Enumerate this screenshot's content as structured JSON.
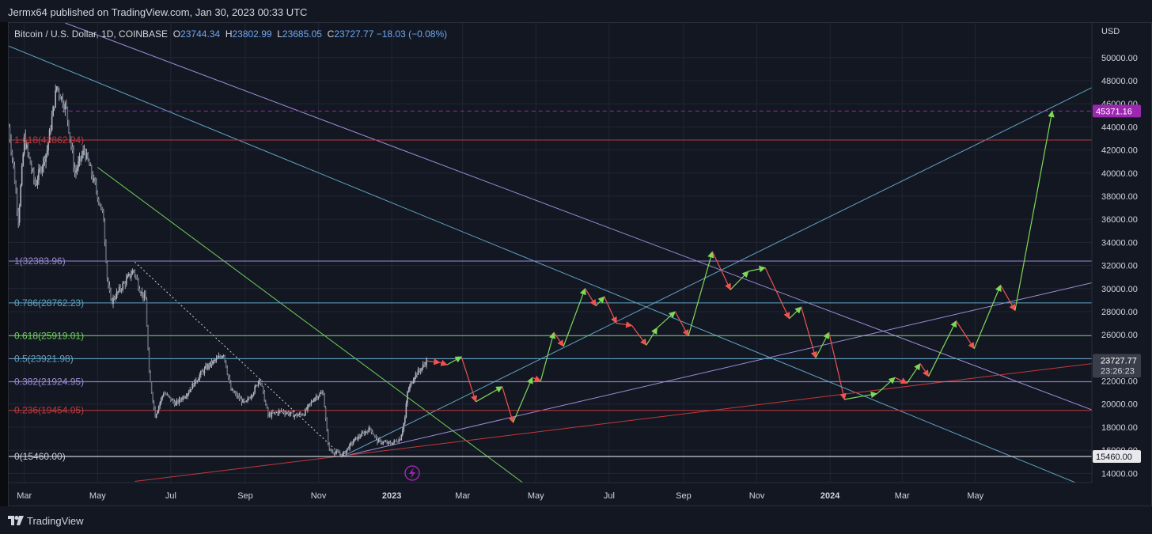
{
  "header": {
    "published_by": "Jermx64 published on TradingView.com, Jan 30, 2023 00:33 UTC"
  },
  "footer": {
    "brand": "TradingView"
  },
  "legend": {
    "symbol": "Bitcoin / U.S. Dollar, 1D, COINBASE",
    "open_key": "O",
    "open": "23744.34",
    "high_key": "H",
    "high": "23802.99",
    "low_key": "L",
    "low": "23685.05",
    "close_key": "C",
    "close": "23727.77",
    "change": "−18.03 (−0.08%)"
  },
  "currency": "USD",
  "colors": {
    "background": "#131722",
    "grid": "#222633",
    "candle": "#c7cbd4",
    "projection_up": "#7ed957",
    "projection_down": "#ef5350",
    "fib_red": "#c0393b",
    "fib_purple": "#9c8bd6",
    "fib_blue": "#5fa3c4",
    "fib_green": "#6ed05a",
    "target_badge": "#9c27b0",
    "last_badge": "#3a3e4a"
  },
  "chart_data": {
    "type": "candlestick",
    "title": "Bitcoin / U.S. Dollar, 1D, COINBASE",
    "ylabel": "USD",
    "ylim": [
      13200,
      53000
    ],
    "y_ticks": [
      14000,
      16000,
      18000,
      20000,
      22000,
      24000,
      26000,
      28000,
      30000,
      32000,
      34000,
      36000,
      38000,
      40000,
      42000,
      44000,
      46000,
      48000,
      50000
    ],
    "x_ticks": [
      "Mar",
      "May",
      "Jul",
      "Sep",
      "Nov",
      "2023",
      "Mar",
      "May",
      "Jul",
      "Sep",
      "Nov",
      "2024",
      "Mar",
      "May"
    ],
    "x_tick_dates": [
      "2022-03-01",
      "2022-05-01",
      "2022-07-01",
      "2022-09-01",
      "2022-11-01",
      "2023-01-01",
      "2023-03-01",
      "2023-05-01",
      "2023-07-01",
      "2023-09-01",
      "2023-11-01",
      "2024-01-01",
      "2024-03-01",
      "2024-05-01"
    ],
    "x_range": [
      "2022-02-16",
      "2024-08-06"
    ],
    "price_path": [
      [
        "2022-02-16",
        44000
      ],
      [
        "2022-02-20",
        40500
      ],
      [
        "2022-02-24",
        36000
      ],
      [
        "2022-03-01",
        43000
      ],
      [
        "2022-03-10",
        39000
      ],
      [
        "2022-03-20",
        42000
      ],
      [
        "2022-03-28",
        47500
      ],
      [
        "2022-04-05",
        45500
      ],
      [
        "2022-04-12",
        40000
      ],
      [
        "2022-04-20",
        42000
      ],
      [
        "2022-04-30",
        38500
      ],
      [
        "2022-05-06",
        36000
      ],
      [
        "2022-05-09",
        31000
      ],
      [
        "2022-05-12",
        28800
      ],
      [
        "2022-05-20",
        30000
      ],
      [
        "2022-05-31",
        31600
      ],
      [
        "2022-06-05",
        30000
      ],
      [
        "2022-06-10",
        29000
      ],
      [
        "2022-06-13",
        22500
      ],
      [
        "2022-06-18",
        19000
      ],
      [
        "2022-06-25",
        21000
      ],
      [
        "2022-07-05",
        20000
      ],
      [
        "2022-07-15",
        21000
      ],
      [
        "2022-07-25",
        22500
      ],
      [
        "2022-08-01",
        23300
      ],
      [
        "2022-08-10",
        24000
      ],
      [
        "2022-08-14",
        24400
      ],
      [
        "2022-08-20",
        21200
      ],
      [
        "2022-09-01",
        20000
      ],
      [
        "2022-09-10",
        21500
      ],
      [
        "2022-09-13",
        22300
      ],
      [
        "2022-09-20",
        19000
      ],
      [
        "2022-10-01",
        19400
      ],
      [
        "2022-10-13",
        19000
      ],
      [
        "2022-10-20",
        19200
      ],
      [
        "2022-10-29",
        20600
      ],
      [
        "2022-11-05",
        21000
      ],
      [
        "2022-11-08",
        17500
      ],
      [
        "2022-11-10",
        16000
      ],
      [
        "2022-11-21",
        15600
      ],
      [
        "2022-12-01",
        16900
      ],
      [
        "2022-12-14",
        17900
      ],
      [
        "2022-12-20",
        16800
      ],
      [
        "2022-12-31",
        16550
      ],
      [
        "2023-01-08",
        17000
      ],
      [
        "2023-01-12",
        18800
      ],
      [
        "2023-01-14",
        21000
      ],
      [
        "2023-01-20",
        22500
      ],
      [
        "2023-01-25",
        23000
      ],
      [
        "2023-01-30",
        23727.77
      ]
    ],
    "projection_path": [
      [
        "2023-01-30",
        23730
      ],
      [
        "2023-02-10",
        23600
      ],
      [
        "2023-02-16",
        23400
      ],
      [
        "2023-02-28",
        24100
      ],
      [
        "2023-03-12",
        20200
      ],
      [
        "2023-04-03",
        21500
      ],
      [
        "2023-04-12",
        18400
      ],
      [
        "2023-04-28",
        22300
      ],
      [
        "2023-05-05",
        22000
      ],
      [
        "2023-05-16",
        26200
      ],
      [
        "2023-05-24",
        25000
      ],
      [
        "2023-06-11",
        30000
      ],
      [
        "2023-06-20",
        28500
      ],
      [
        "2023-06-27",
        29300
      ],
      [
        "2023-07-07",
        27000
      ],
      [
        "2023-07-20",
        26800
      ],
      [
        "2023-08-01",
        25100
      ],
      [
        "2023-08-10",
        26600
      ],
      [
        "2023-08-25",
        28000
      ],
      [
        "2023-09-05",
        25900
      ],
      [
        "2023-09-25",
        33200
      ],
      [
        "2023-10-10",
        29900
      ],
      [
        "2023-10-25",
        31500
      ],
      [
        "2023-11-08",
        31800
      ],
      [
        "2023-11-28",
        27400
      ],
      [
        "2023-12-08",
        28400
      ],
      [
        "2023-12-20",
        24000
      ],
      [
        "2023-12-31",
        26200
      ],
      [
        "2024-01-13",
        20400
      ],
      [
        "2024-02-09",
        20900
      ],
      [
        "2024-02-24",
        22300
      ],
      [
        "2024-03-05",
        21800
      ],
      [
        "2024-03-16",
        23500
      ],
      [
        "2024-03-23",
        22400
      ],
      [
        "2024-04-15",
        27200
      ],
      [
        "2024-04-30",
        24800
      ],
      [
        "2024-05-22",
        30300
      ],
      [
        "2024-06-03",
        28100
      ],
      [
        "2024-07-04",
        45371.16
      ]
    ],
    "fib_levels": [
      {
        "label": "0(15460.00)",
        "value": 15460.0,
        "color": "#c9ccd2"
      },
      {
        "label": "0.236(19454.05)",
        "value": 19454.05,
        "color": "#c0393b"
      },
      {
        "label": "0.382(21924.95)",
        "value": 21924.95,
        "color": "#9c8bd6"
      },
      {
        "label": "0.5(23921.98)",
        "value": 23921.98,
        "color": "#5fa3c4"
      },
      {
        "label": "0.618(25919.01)",
        "value": 25919.01,
        "color": "#6ed05a"
      },
      {
        "label": "0.786(28762.23)",
        "value": 28762.23,
        "color": "#5fa3c4"
      },
      {
        "label": "1(32383.96)",
        "value": 32383.96,
        "color": "#9c8bd6"
      },
      {
        "label": "1.618(42862.94)",
        "value": 42862.94,
        "color": "#c0393b"
      }
    ],
    "trendlines": [
      {
        "color": "#5fa3c4",
        "from": [
          "2022-02-16",
          51000
        ],
        "to": [
          "2024-07-28",
          13000
        ]
      },
      {
        "color": "#9c8bd6",
        "from": [
          "2022-04-04",
          53000
        ],
        "to": [
          "2024-08-06",
          19500
        ]
      },
      {
        "color": "#6ed05a",
        "from": [
          "2022-05-01",
          40500
        ],
        "to": [
          "2023-04-20",
          13200
        ]
      },
      {
        "color": "#5fa3c4",
        "from": [
          "2022-11-21",
          15460
        ],
        "to": [
          "2024-08-06",
          47400
        ]
      },
      {
        "color": "#9c8bd6",
        "from": [
          "2022-11-21",
          15460
        ],
        "to": [
          "2024-08-06",
          30500
        ]
      },
      {
        "color": "#c0393b",
        "from": [
          "2022-06-01",
          13300
        ],
        "to": [
          "2024-08-06",
          23500
        ]
      }
    ],
    "dotted_line": {
      "from": [
        "2022-06-01",
        32300
      ],
      "to": [
        "2022-11-21",
        15460
      ]
    },
    "target_line": {
      "value": 45371.16,
      "from": "2022-04-01"
    },
    "price_badges": [
      {
        "label": "45371.16",
        "value": 45371.16,
        "kind": "target"
      },
      {
        "label": "23727.77",
        "sub": "23:26:23",
        "value": 23727.77,
        "kind": "last"
      },
      {
        "label": "15460.00",
        "value": 15460.0,
        "kind": "fib"
      }
    ]
  }
}
